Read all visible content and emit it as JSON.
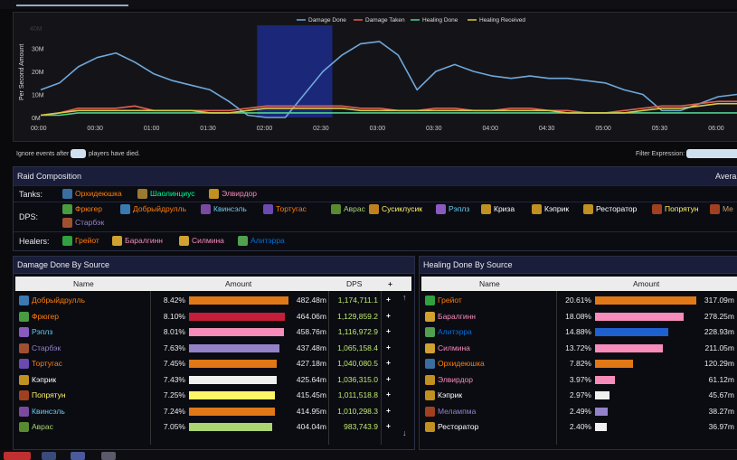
{
  "chart_data": {
    "type": "line",
    "ylabel": "Per Second Amount",
    "y_ticks": [
      "0M",
      "10M",
      "20M",
      "30M"
    ],
    "y_max_label": "40M",
    "ylim": [
      0,
      40
    ],
    "x_ticks": [
      "00:00",
      "00:30",
      "01:00",
      "01:30",
      "02:00",
      "02:30",
      "03:00",
      "03:30",
      "04:00",
      "04:30",
      "05:00",
      "05:30",
      "06:00"
    ],
    "x_seconds": [
      0,
      10,
      20,
      30,
      40,
      50,
      60,
      70,
      80,
      90,
      100,
      110,
      120,
      130,
      140,
      150,
      160,
      170,
      180,
      190,
      200,
      210,
      220,
      230,
      240,
      250,
      260,
      270,
      280,
      290,
      300,
      310,
      320,
      330,
      340,
      350,
      360,
      370
    ],
    "selection": [
      115,
      155
    ],
    "series": [
      {
        "name": "Damage Done",
        "color": "#6fa8dc",
        "values": [
          12,
          15,
          22,
          26,
          28,
          24,
          19,
          16,
          14,
          12,
          7,
          1,
          0,
          0,
          10,
          20,
          27,
          32,
          33,
          27,
          12,
          20,
          23,
          20,
          18,
          17,
          18,
          17,
          17,
          16,
          15,
          12,
          10,
          3,
          3,
          6,
          9,
          10
        ]
      },
      {
        "name": "Damage Taken",
        "color": "#e06050",
        "values": [
          1,
          2,
          4,
          4,
          4,
          5,
          3,
          3,
          3,
          3,
          3,
          4,
          5,
          5,
          5,
          5,
          5,
          4,
          4,
          3,
          3,
          4,
          4,
          3,
          3,
          4,
          4,
          3,
          3,
          2,
          2,
          3,
          4,
          5,
          5,
          6,
          7,
          7
        ]
      },
      {
        "name": "Healing Done",
        "color": "#4fd08a",
        "values": [
          1,
          1,
          2,
          2,
          2,
          2,
          2,
          2,
          2,
          2,
          2,
          2,
          2,
          2,
          2,
          2,
          2,
          2,
          2,
          2,
          2,
          2,
          2,
          2,
          2,
          2,
          2,
          2,
          2,
          2,
          2,
          2,
          2,
          2,
          2,
          2,
          2,
          2
        ]
      },
      {
        "name": "Healing Received",
        "color": "#d8c848",
        "values": [
          1,
          2,
          3,
          3,
          3,
          3,
          3,
          3,
          3,
          2,
          2,
          3,
          4,
          4,
          4,
          4,
          4,
          3,
          3,
          3,
          3,
          3,
          3,
          3,
          3,
          3,
          3,
          3,
          2,
          2,
          2,
          2,
          3,
          4,
          4,
          5,
          6,
          6
        ]
      }
    ]
  },
  "controls": {
    "ignore_prefix": "Ignore events after",
    "ignore_suffix": "players have died.",
    "filter_label": "Filter Expression:"
  },
  "raid": {
    "title": "Raid Composition",
    "right_label": "Avera",
    "tanks_label": "Tanks:",
    "dps_label": "DPS:",
    "healers_label": "Healers:",
    "tanks": [
      {
        "name": "Орхидеюшка",
        "color": "#ff7d0a",
        "icon": "#3a6ea0"
      },
      {
        "name": "Шаолинциус",
        "color": "#00ff96",
        "icon": "#9a7a30"
      },
      {
        "name": "Элвирдор",
        "color": "#f58cba",
        "icon": "#c09020"
      }
    ],
    "dps": [
      {
        "name": "Фрюгер",
        "color": "#ff7d0a",
        "icon": "#4a9a40"
      },
      {
        "name": "Добрыйдрулль",
        "color": "#ff7d0a",
        "icon": "#3a7ab0"
      },
      {
        "name": "Квинсэль",
        "color": "#69ccf0",
        "icon": "#7a4aa0"
      },
      {
        "name": "Тортугас",
        "color": "#ff7d0a",
        "icon": "#6a4ab0"
      },
      {
        "name": "Аврас",
        "color": "#abd473",
        "icon": "#5a8a30"
      },
      {
        "name": "Сусиклусик",
        "color": "#fff569",
        "icon": "#c08020"
      },
      {
        "name": "Рэплз",
        "color": "#69ccf0",
        "icon": "#8a5ac0"
      },
      {
        "name": "Криза",
        "color": "#ffffff",
        "icon": "#c09020"
      },
      {
        "name": "Кэприк",
        "color": "#ffffff",
        "icon": "#c09020"
      },
      {
        "name": "Ресторатор",
        "color": "#ffffff",
        "icon": "#c09020"
      },
      {
        "name": "Попрятун",
        "color": "#fff569",
        "icon": "#a04020"
      },
      {
        "name": "Ме",
        "color": "#c79c6e",
        "icon": "#a04020"
      },
      {
        "name": "Старбэк",
        "color": "#9482c9",
        "icon": "#a05030"
      }
    ],
    "healers": [
      {
        "name": "Грейот",
        "color": "#ff7d0a",
        "icon": "#30a040"
      },
      {
        "name": "Баралгинн",
        "color": "#f58cba",
        "icon": "#d0a030"
      },
      {
        "name": "Силмина",
        "color": "#f58cba",
        "icon": "#d0a030"
      },
      {
        "name": "Алитэрра",
        "color": "#0070de",
        "icon": "#50a050"
      }
    ]
  },
  "damage": {
    "title": "Damage Done By Source",
    "col_name": "Name",
    "col_amount": "Amount",
    "col_dps": "DPS",
    "col_plus": "+",
    "rows": [
      {
        "name": "Добрыйдрулль",
        "color": "#ff7d0a",
        "icon": "#3a7ab0",
        "pct": "8.42%",
        "amount": "482.48m",
        "dps": "1,174,711.1",
        "bar": "#e07818",
        "frac": 1.0
      },
      {
        "name": "Фрюгер",
        "color": "#ff7d0a",
        "icon": "#4a9a40",
        "pct": "8.10%",
        "amount": "464.06m",
        "dps": "1,129,859.2",
        "bar": "#c41e3a",
        "frac": 0.962
      },
      {
        "name": "Рэплз",
        "color": "#69ccf0",
        "icon": "#8a5ac0",
        "pct": "8.01%",
        "amount": "458.76m",
        "dps": "1,116,972.9",
        "bar": "#f58cba",
        "frac": 0.951
      },
      {
        "name": "Старбэк",
        "color": "#9482c9",
        "icon": "#a05030",
        "pct": "7.63%",
        "amount": "437.48m",
        "dps": "1,065,158.4",
        "bar": "#9482c9",
        "frac": 0.907
      },
      {
        "name": "Тортугас",
        "color": "#ff7d0a",
        "icon": "#6a4ab0",
        "pct": "7.45%",
        "amount": "427.18m",
        "dps": "1,040,080.5",
        "bar": "#e07818",
        "frac": 0.885
      },
      {
        "name": "Кэприк",
        "color": "#ffffff",
        "icon": "#c09020",
        "pct": "7.43%",
        "amount": "425.64m",
        "dps": "1,036,315.0",
        "bar": "#f0f0f0",
        "frac": 0.882
      },
      {
        "name": "Попрятун",
        "color": "#fff569",
        "icon": "#a04020",
        "pct": "7.25%",
        "amount": "415.45m",
        "dps": "1,011,518.8",
        "bar": "#fff569",
        "frac": 0.861
      },
      {
        "name": "Квинсэль",
        "color": "#69ccf0",
        "icon": "#7a4aa0",
        "pct": "7.24%",
        "amount": "414.95m",
        "dps": "1,010,298.3",
        "bar": "#e07818",
        "frac": 0.86
      },
      {
        "name": "Аврас",
        "color": "#abd473",
        "icon": "#5a8a30",
        "pct": "7.05%",
        "amount": "404.04m",
        "dps": "983,743.9",
        "bar": "#abd473",
        "frac": 0.837
      }
    ]
  },
  "healing": {
    "title": "Healing Done By Source",
    "col_name": "Name",
    "col_amount": "Amount",
    "rows": [
      {
        "name": "Грейот",
        "color": "#ff7d0a",
        "icon": "#30a040",
        "pct": "20.61%",
        "amount": "317.09m",
        "bar": "#e07818",
        "frac": 1.0
      },
      {
        "name": "Баралгинн",
        "color": "#f58cba",
        "icon": "#d0a030",
        "pct": "18.08%",
        "amount": "278.25m",
        "bar": "#f58cba",
        "frac": 0.877
      },
      {
        "name": "Алитэрра",
        "color": "#0070de",
        "icon": "#50a050",
        "pct": "14.88%",
        "amount": "228.93m",
        "bar": "#1e60d0",
        "frac": 0.722
      },
      {
        "name": "Силмина",
        "color": "#f58cba",
        "icon": "#d0a030",
        "pct": "13.72%",
        "amount": "211.05m",
        "bar": "#f58cba",
        "frac": 0.666
      },
      {
        "name": "Орхидеюшка",
        "color": "#ff7d0a",
        "icon": "#3a6ea0",
        "pct": "7.82%",
        "amount": "120.29m",
        "bar": "#e07818",
        "frac": 0.379
      },
      {
        "name": "Элвирдор",
        "color": "#f58cba",
        "icon": "#c09020",
        "pct": "3.97%",
        "amount": "61.12m",
        "bar": "#f58cba",
        "frac": 0.193
      },
      {
        "name": "Кэприк",
        "color": "#ffffff",
        "icon": "#c09020",
        "pct": "2.97%",
        "amount": "45.67m",
        "bar": "#f0f0f0",
        "frac": 0.144
      },
      {
        "name": "Мелампма",
        "color": "#9482c9",
        "icon": "#a04020",
        "pct": "2.49%",
        "amount": "38.27m",
        "bar": "#9482c9",
        "frac": 0.121
      },
      {
        "name": "Ресторатор",
        "color": "#ffffff",
        "icon": "#c09020",
        "pct": "2.40%",
        "amount": "36.97m",
        "bar": "#f0f0f0",
        "frac": 0.117
      }
    ]
  }
}
